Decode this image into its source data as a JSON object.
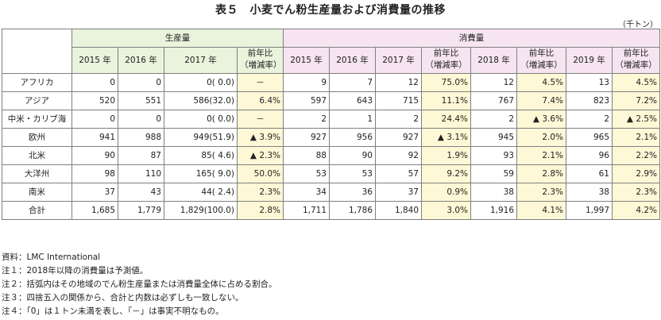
{
  "title": "表５　小麦でん粉生産量および消費量の推移",
  "unit": "（千トン）",
  "header": {
    "production": "生産量",
    "consumption": "消費量",
    "production_cols": [
      "2015 年",
      "2016 年",
      "2017 年",
      "前年比\n（増減率）"
    ],
    "consumption_cols": [
      "2015 年",
      "2016 年",
      "2017 年",
      "前年比\n（増減率）",
      "2018 年",
      "前年比\n（増減率）",
      "2019 年",
      "前年比\n（増減率）"
    ]
  },
  "rows": [
    {
      "region": "アフリカ",
      "cells": [
        "0",
        "0",
        "0(  0.0)",
        "－",
        "9",
        "7",
        "12",
        "75.0%",
        "12",
        "4.5%",
        "13",
        "4.5%"
      ]
    },
    {
      "region": "アジア",
      "cells": [
        "520",
        "551",
        "586(32.0)",
        "6.4%",
        "597",
        "643",
        "715",
        "11.1%",
        "767",
        "7.4%",
        "823",
        "7.2%"
      ]
    },
    {
      "region": "中米・カリブ海",
      "cells": [
        "0",
        "0",
        "0(  0.0)",
        "－",
        "2",
        "1",
        "2",
        "24.4%",
        "2",
        "▲ 3.6%",
        "2",
        "▲ 2.5%"
      ]
    },
    {
      "region": "欧州",
      "cells": [
        "941",
        "988",
        "949(51.9)",
        "▲ 3.9%",
        "927",
        "956",
        "927",
        "▲ 3.1%",
        "945",
        "2.0%",
        "965",
        "2.1%"
      ]
    },
    {
      "region": "北米",
      "cells": [
        "90",
        "87",
        "85(  4.6)",
        "▲ 2.3%",
        "88",
        "90",
        "92",
        "1.9%",
        "93",
        "2.1%",
        "96",
        "2.2%"
      ]
    },
    {
      "region": "大洋州",
      "cells": [
        "98",
        "110",
        "165(  9.0)",
        "50.0%",
        "53",
        "53",
        "57",
        "9.2%",
        "59",
        "2.8%",
        "61",
        "2.9%"
      ]
    },
    {
      "region": "南米",
      "cells": [
        "37",
        "43",
        "44(  2.4)",
        "2.3%",
        "34",
        "36",
        "37",
        "0.9%",
        "38",
        "2.3%",
        "38",
        "2.3%"
      ]
    }
  ],
  "total": {
    "region": "合計",
    "cells": [
      "1,685",
      "1,779",
      "1,829(100.0)",
      "2.8%",
      "1,711",
      "1,786",
      "1,840",
      "3.0%",
      "1,916",
      "4.1%",
      "1,997",
      "4.2%"
    ]
  },
  "notes": [
    "資料：LMC International",
    "注１：2018年以降の消費量は予測値。",
    "注２：括弧内はその地域のでん粉生産量または消費量全体に占める割合。",
    "注３：四捨五入の関係から、合計と内数は必ずしも一致しない。",
    "注４：「0」は１トン未満を表し、「－」は事実不明なもの。"
  ]
}
